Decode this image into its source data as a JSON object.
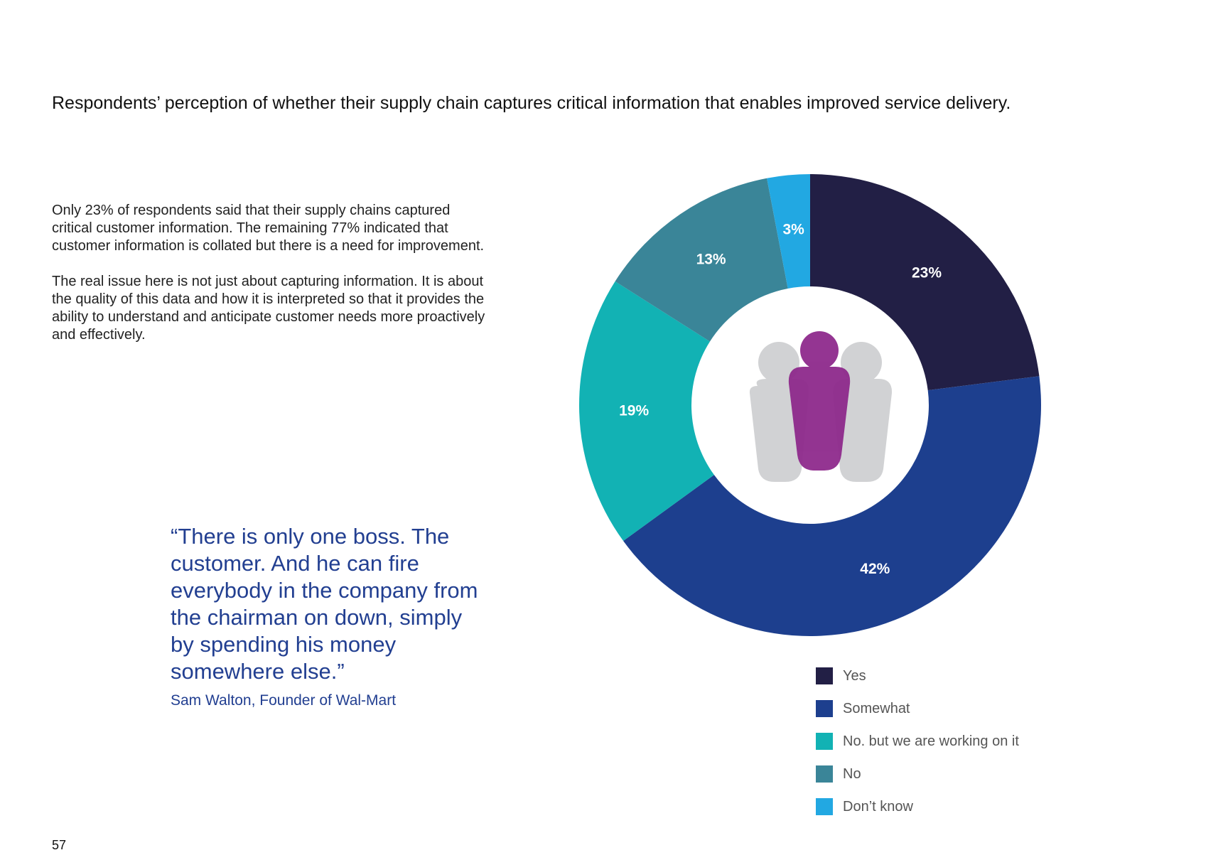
{
  "page": {
    "title": "Respondents’ perception of whether their supply chain captures critical information that enables improved service delivery.",
    "paragraphs": [
      "Only 23% of respondents said that their supply chains captured critical customer information. The remaining 77% indicated that customer information is collated but there is a need for improvement.",
      "The real issue here is not just about capturing information. It is about the quality of this data and how it is interpreted so that it provides the ability to understand and anticipate customer needs more proactively and effectively."
    ],
    "quote": {
      "text": "“There is only one boss. The customer. And he can fire everybody in the company from the chairman on down, simply by spending his money somewhere else.”",
      "author": "Sam Walton, Founder of Wal-Mart"
    },
    "page_number": "57"
  },
  "chart_data": {
    "type": "pie",
    "variant": "donut",
    "title": "Respondents’ perception of whether their supply chain captures critical information that enables improved service delivery.",
    "categories": [
      "Yes",
      "Somewhat",
      "No. but we are working on it",
      "No",
      "Don’t know"
    ],
    "values": [
      23,
      42,
      19,
      13,
      3
    ],
    "labels": [
      "23%",
      "42%",
      "19%",
      "13%",
      "3%"
    ],
    "unit": "%",
    "colors": [
      "#221f45",
      "#1d3f8e",
      "#12b2b4",
      "#3a8598",
      "#22a8e2"
    ],
    "legend": "bottom-right",
    "center_icon": "people-group-icon",
    "icon_colors": {
      "primary": "#8e2a8c",
      "secondary": "#d1d2d4"
    }
  }
}
